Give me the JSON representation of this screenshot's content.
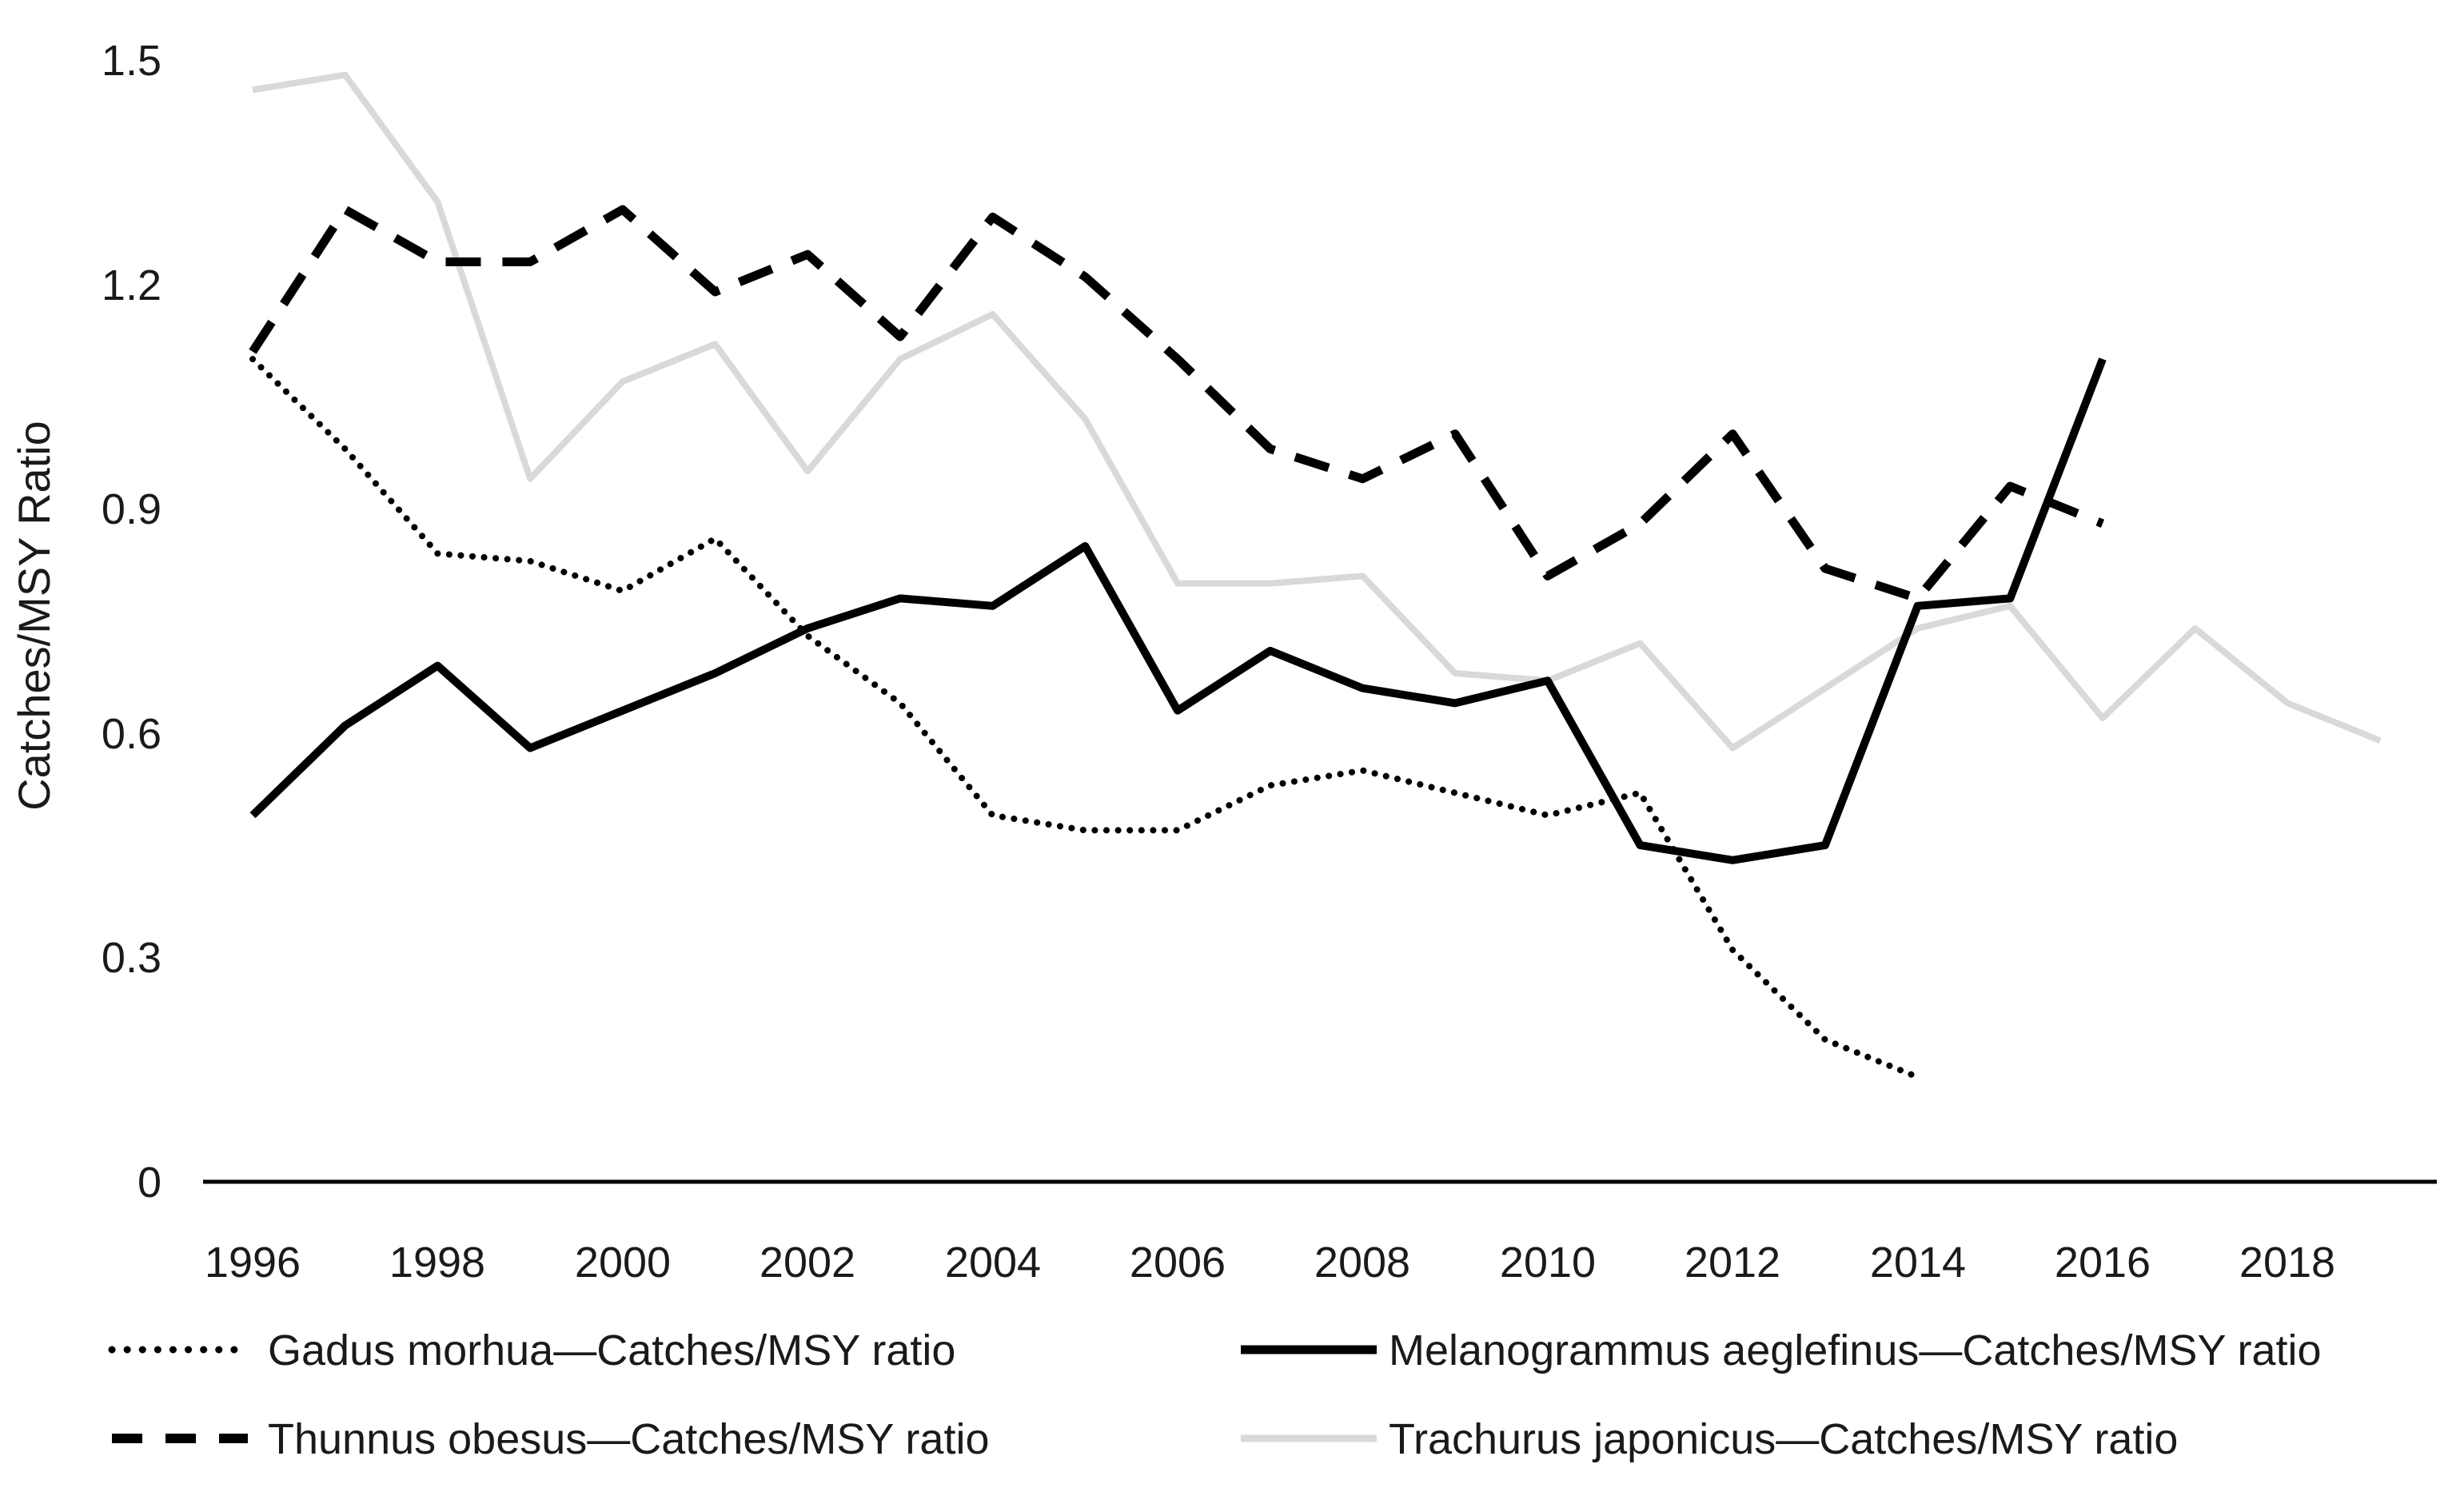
{
  "chart_data": {
    "type": "line",
    "title": "",
    "xlabel": "",
    "ylabel": "Catches/MSY Ratio",
    "x": [
      1996,
      1997,
      1998,
      1999,
      2000,
      2001,
      2002,
      2003,
      2004,
      2005,
      2006,
      2007,
      2008,
      2009,
      2010,
      2011,
      2012,
      2013,
      2014,
      2015,
      2016,
      2017,
      2018,
      2019
    ],
    "xlim": [
      1996,
      2019
    ],
    "ylim": [
      0,
      1.5
    ],
    "grid": false,
    "legend_position": "bottom",
    "xtick_labels": [
      "1996",
      "1998",
      "2000",
      "2002",
      "2004",
      "2006",
      "2008",
      "2010",
      "2012",
      "2014",
      "2016",
      "2018"
    ],
    "ytick_labels": [
      "0",
      "0.3",
      "0.6",
      "0.9",
      "1.2",
      "1.5"
    ],
    "ytick_values": [
      0,
      0.3,
      0.6,
      0.9,
      1.2,
      1.5
    ],
    "series": [
      {
        "name": "Gadus morhua—Catches/MSY ratio",
        "style": "dotted",
        "color": "#000000",
        "start_year": 1996,
        "values": [
          1.1,
          0.98,
          0.84,
          0.83,
          0.79,
          0.86,
          0.73,
          0.64,
          0.49,
          0.47,
          0.47,
          0.53,
          0.55,
          0.52,
          0.49,
          0.52,
          0.31,
          0.19,
          0.14
        ]
      },
      {
        "name": "Melanogrammus aeglefinus—Catches/MSY ratio",
        "style": "solid",
        "color": "#000000",
        "start_year": 1996,
        "values": [
          0.49,
          0.61,
          0.69,
          0.58,
          0.63,
          0.68,
          0.74,
          0.78,
          0.77,
          0.85,
          0.63,
          0.71,
          0.66,
          0.64,
          0.67,
          0.45,
          0.43,
          0.45,
          0.77,
          0.78,
          1.1
        ]
      },
      {
        "name": "Thunnus obesus—Catches/MSY ratio",
        "style": "dashed",
        "color": "#000000",
        "start_year": 1996,
        "values": [
          1.11,
          1.3,
          1.23,
          1.23,
          1.3,
          1.19,
          1.24,
          1.13,
          1.29,
          1.21,
          1.1,
          0.98,
          0.94,
          1.0,
          0.81,
          0.88,
          1.0,
          0.82,
          0.78,
          0.93,
          0.88
        ]
      },
      {
        "name": "Trachurus japonicus—Catches/MSY ratio",
        "style": "solid",
        "color": "#D9D9D9",
        "start_year": 1996,
        "values": [
          1.46,
          1.48,
          1.31,
          0.94,
          1.07,
          1.12,
          0.95,
          1.1,
          1.16,
          1.02,
          0.8,
          0.8,
          0.81,
          0.68,
          0.67,
          0.72,
          0.58,
          0.66,
          0.74,
          0.77,
          0.62,
          0.74,
          0.64,
          0.59
        ]
      }
    ]
  },
  "legend": {
    "items": [
      {
        "label": "Gadus morhua—Catches/MSY ratio"
      },
      {
        "label": "Melanogrammus aeglefinus—Catches/MSY ratio"
      },
      {
        "label": "Thunnus obesus—Catches/MSY ratio"
      },
      {
        "label": "Trachurus japonicus—Catches/MSY ratio"
      }
    ]
  }
}
